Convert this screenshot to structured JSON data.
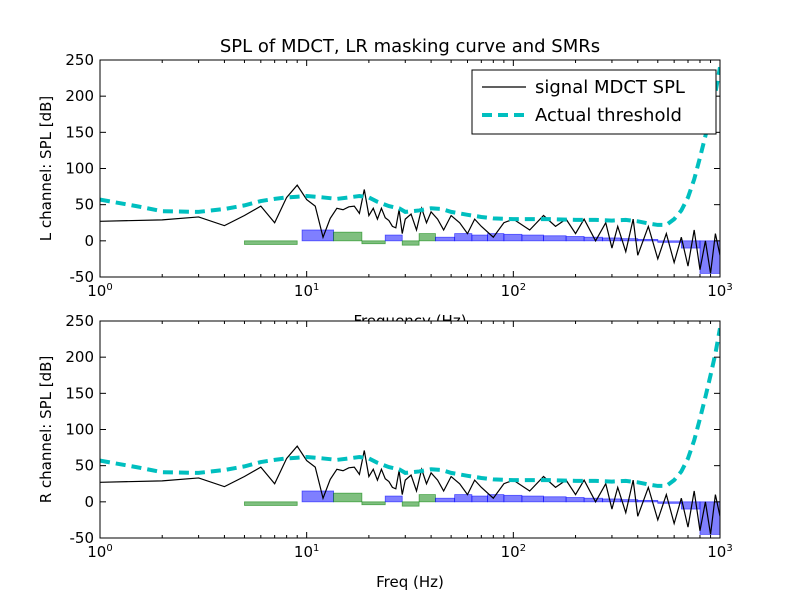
{
  "figure": {
    "title": "SPL of MDCT, LR masking curve and SMRs",
    "legend": {
      "placement": "top-right",
      "entries": [
        "signal MDCT SPL",
        "Actual threshold"
      ]
    }
  },
  "colors": {
    "signal": "#000000",
    "threshold": "#00bfbf",
    "smr_positive": "#0000ff",
    "smr_negative": "#008000"
  },
  "chart_data": [
    {
      "type": "line",
      "panel": "top",
      "ylabel": "L channel: SPL [dB]",
      "xlabel": "Frequency (Hz)",
      "xscale": "log",
      "xlim": [
        1,
        1000
      ],
      "ylim": [
        -50,
        250
      ],
      "xticks": [
        "10^0",
        "10^1",
        "10^2",
        "10^3"
      ],
      "yticks": [
        -50,
        0,
        50,
        100,
        150,
        200,
        250
      ],
      "series": [
        {
          "name": "signal MDCT SPL",
          "x": [
            1,
            2,
            3,
            4,
            5,
            6,
            7,
            8,
            9,
            10,
            11,
            12,
            13,
            14,
            15,
            16,
            17,
            18,
            19,
            20,
            21,
            22,
            23,
            24,
            25,
            26,
            27,
            28,
            29,
            30,
            32,
            34,
            36,
            38,
            40,
            43,
            46,
            50,
            55,
            60,
            65,
            70,
            80,
            90,
            100,
            120,
            140,
            160,
            180,
            200,
            220,
            250,
            280,
            300,
            320,
            350,
            380,
            400,
            450,
            500,
            550,
            600,
            650,
            700,
            750,
            800,
            850,
            900,
            950,
            1000
          ],
          "y": [
            27,
            29,
            33,
            21,
            35,
            48,
            25,
            60,
            77,
            57,
            48,
            5,
            31,
            45,
            43,
            47,
            48,
            38,
            71,
            35,
            45,
            30,
            45,
            32,
            28,
            20,
            18,
            43,
            10,
            30,
            37,
            15,
            45,
            25,
            40,
            30,
            15,
            35,
            25,
            10,
            30,
            20,
            5,
            25,
            30,
            15,
            35,
            20,
            30,
            10,
            30,
            0,
            25,
            -10,
            20,
            -15,
            30,
            -20,
            20,
            -25,
            10,
            -30,
            5,
            -35,
            15,
            -40,
            0,
            -45,
            10,
            -20
          ],
          "color": "#000000"
        },
        {
          "name": "Actual threshold",
          "x": [
            1,
            1.5,
            2,
            3,
            4,
            5,
            6,
            7,
            8,
            9,
            10,
            12,
            14,
            16,
            18,
            20,
            22,
            25,
            28,
            30,
            35,
            40,
            45,
            50,
            60,
            70,
            80,
            100,
            120,
            150,
            200,
            250,
            300,
            350,
            400,
            450,
            500,
            550,
            600,
            650,
            700,
            750,
            800,
            850,
            900,
            950,
            1000
          ],
          "y": [
            57,
            48,
            41,
            40,
            44,
            49,
            55,
            58,
            60,
            61,
            62,
            60,
            58,
            60,
            62,
            60,
            54,
            48,
            45,
            40,
            42,
            45,
            44,
            40,
            36,
            33,
            31,
            30,
            30,
            30,
            29,
            29,
            28,
            29,
            27,
            24,
            22,
            22,
            30,
            42,
            60,
            85,
            115,
            145,
            175,
            205,
            240
          ],
          "color": "#00bfbf",
          "style": "dashed"
        }
      ],
      "smr_bands": [
        {
          "x0": 5,
          "x1": 9,
          "value": -5,
          "sign": "negative"
        },
        {
          "x0": 9.5,
          "x1": 13.5,
          "value": 15,
          "sign": "positive"
        },
        {
          "x0": 13.5,
          "x1": 18.5,
          "value": 12,
          "sign": "negative"
        },
        {
          "x0": 18.5,
          "x1": 24,
          "value": -4,
          "sign": "negative"
        },
        {
          "x0": 24,
          "x1": 29,
          "value": 8,
          "sign": "positive"
        },
        {
          "x0": 29,
          "x1": 35,
          "value": -6,
          "sign": "negative"
        },
        {
          "x0": 35,
          "x1": 42,
          "value": 10,
          "sign": "negative"
        },
        {
          "x0": 42,
          "x1": 52,
          "value": 5,
          "sign": "positive"
        },
        {
          "x0": 52,
          "x1": 63,
          "value": 10,
          "sign": "positive"
        },
        {
          "x0": 63,
          "x1": 75,
          "value": 8,
          "sign": "positive"
        },
        {
          "x0": 75,
          "x1": 90,
          "value": 10,
          "sign": "positive"
        },
        {
          "x0": 90,
          "x1": 110,
          "value": 9,
          "sign": "positive"
        },
        {
          "x0": 110,
          "x1": 140,
          "value": 8,
          "sign": "positive"
        },
        {
          "x0": 140,
          "x1": 180,
          "value": 7,
          "sign": "positive"
        },
        {
          "x0": 180,
          "x1": 220,
          "value": 6,
          "sign": "positive"
        },
        {
          "x0": 220,
          "x1": 270,
          "value": 5,
          "sign": "positive"
        },
        {
          "x0": 270,
          "x1": 330,
          "value": 4,
          "sign": "positive"
        },
        {
          "x0": 330,
          "x1": 400,
          "value": 3,
          "sign": "positive"
        },
        {
          "x0": 400,
          "x1": 500,
          "value": 2,
          "sign": "positive"
        },
        {
          "x0": 500,
          "x1": 650,
          "value": 0,
          "sign": "positive"
        },
        {
          "x0": 650,
          "x1": 800,
          "value": -10,
          "sign": "positive"
        },
        {
          "x0": 800,
          "x1": 1000,
          "value": -45,
          "sign": "positive"
        }
      ]
    },
    {
      "type": "line",
      "panel": "bottom",
      "ylabel": "R channel: SPL [dB]",
      "xlabel": "Freq (Hz)",
      "xscale": "log",
      "xlim": [
        1,
        1000
      ],
      "ylim": [
        -50,
        250
      ],
      "xticks": [
        "10^0",
        "10^1",
        "10^2",
        "10^3"
      ],
      "yticks": [
        -50,
        0,
        50,
        100,
        150,
        200,
        250
      ],
      "series": [
        {
          "name": "signal MDCT SPL",
          "x": [
            1,
            2,
            3,
            4,
            5,
            6,
            7,
            8,
            9,
            10,
            11,
            12,
            13,
            14,
            15,
            16,
            17,
            18,
            19,
            20,
            21,
            22,
            23,
            24,
            25,
            26,
            27,
            28,
            29,
            30,
            32,
            34,
            36,
            38,
            40,
            43,
            46,
            50,
            55,
            60,
            65,
            70,
            80,
            90,
            100,
            120,
            140,
            160,
            180,
            200,
            220,
            250,
            280,
            300,
            320,
            350,
            380,
            400,
            450,
            500,
            550,
            600,
            650,
            700,
            750,
            800,
            850,
            900,
            950,
            1000
          ],
          "y": [
            27,
            29,
            33,
            21,
            35,
            48,
            25,
            60,
            77,
            57,
            48,
            5,
            31,
            45,
            43,
            47,
            48,
            38,
            71,
            35,
            45,
            30,
            45,
            32,
            28,
            20,
            18,
            43,
            10,
            30,
            37,
            15,
            45,
            25,
            40,
            30,
            15,
            35,
            25,
            10,
            30,
            20,
            5,
            25,
            30,
            15,
            35,
            20,
            30,
            10,
            30,
            0,
            25,
            -10,
            20,
            -15,
            30,
            -20,
            20,
            -25,
            10,
            -30,
            5,
            -35,
            15,
            -40,
            0,
            -45,
            10,
            -20
          ],
          "color": "#000000"
        },
        {
          "name": "Actual threshold",
          "x": [
            1,
            1.5,
            2,
            3,
            4,
            5,
            6,
            7,
            8,
            9,
            10,
            12,
            14,
            16,
            18,
            20,
            22,
            25,
            28,
            30,
            35,
            40,
            45,
            50,
            60,
            70,
            80,
            100,
            120,
            150,
            200,
            250,
            300,
            350,
            400,
            450,
            500,
            550,
            600,
            650,
            700,
            750,
            800,
            850,
            900,
            950,
            1000
          ],
          "y": [
            57,
            48,
            41,
            40,
            44,
            49,
            55,
            58,
            60,
            61,
            62,
            60,
            58,
            60,
            62,
            60,
            54,
            48,
            45,
            40,
            42,
            45,
            44,
            40,
            36,
            33,
            31,
            30,
            30,
            30,
            29,
            29,
            28,
            29,
            27,
            24,
            22,
            22,
            30,
            42,
            60,
            85,
            115,
            145,
            175,
            205,
            240
          ],
          "color": "#00bfbf",
          "style": "dashed"
        }
      ],
      "smr_bands": [
        {
          "x0": 5,
          "x1": 9,
          "value": -5,
          "sign": "negative"
        },
        {
          "x0": 9.5,
          "x1": 13.5,
          "value": 15,
          "sign": "positive"
        },
        {
          "x0": 13.5,
          "x1": 18.5,
          "value": 12,
          "sign": "negative"
        },
        {
          "x0": 18.5,
          "x1": 24,
          "value": -4,
          "sign": "negative"
        },
        {
          "x0": 24,
          "x1": 29,
          "value": 8,
          "sign": "positive"
        },
        {
          "x0": 29,
          "x1": 35,
          "value": -6,
          "sign": "negative"
        },
        {
          "x0": 35,
          "x1": 42,
          "value": 10,
          "sign": "negative"
        },
        {
          "x0": 42,
          "x1": 52,
          "value": 5,
          "sign": "positive"
        },
        {
          "x0": 52,
          "x1": 63,
          "value": 10,
          "sign": "positive"
        },
        {
          "x0": 63,
          "x1": 75,
          "value": 8,
          "sign": "positive"
        },
        {
          "x0": 75,
          "x1": 90,
          "value": 10,
          "sign": "positive"
        },
        {
          "x0": 90,
          "x1": 110,
          "value": 9,
          "sign": "positive"
        },
        {
          "x0": 110,
          "x1": 140,
          "value": 8,
          "sign": "positive"
        },
        {
          "x0": 140,
          "x1": 180,
          "value": 7,
          "sign": "positive"
        },
        {
          "x0": 180,
          "x1": 220,
          "value": 6,
          "sign": "positive"
        },
        {
          "x0": 220,
          "x1": 270,
          "value": 5,
          "sign": "positive"
        },
        {
          "x0": 270,
          "x1": 330,
          "value": 4,
          "sign": "positive"
        },
        {
          "x0": 330,
          "x1": 400,
          "value": 3,
          "sign": "positive"
        },
        {
          "x0": 400,
          "x1": 500,
          "value": 2,
          "sign": "positive"
        },
        {
          "x0": 500,
          "x1": 650,
          "value": 0,
          "sign": "positive"
        },
        {
          "x0": 650,
          "x1": 800,
          "value": -10,
          "sign": "positive"
        },
        {
          "x0": 800,
          "x1": 1000,
          "value": -45,
          "sign": "positive"
        }
      ]
    }
  ]
}
